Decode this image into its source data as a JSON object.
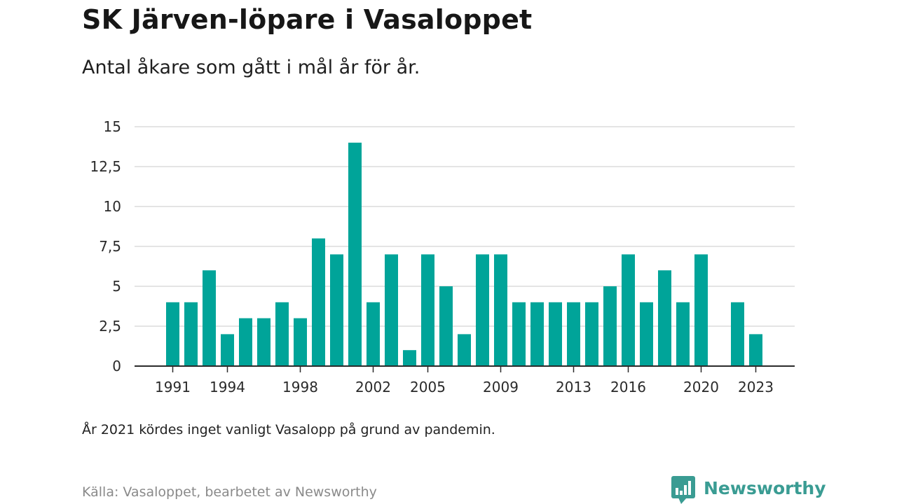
{
  "chart_data": {
    "type": "bar",
    "title": "SK Järven-löpare i Vasaloppet",
    "subtitle": "Antal åkare som gått i mål år för år.",
    "categories": [
      1991,
      1992,
      1993,
      1994,
      1995,
      1996,
      1997,
      1998,
      1999,
      2000,
      2001,
      2002,
      2003,
      2004,
      2005,
      2006,
      2007,
      2008,
      2009,
      2010,
      2011,
      2012,
      2013,
      2014,
      2015,
      2016,
      2017,
      2018,
      2019,
      2020,
      2021,
      2022,
      2023
    ],
    "values": [
      4,
      4,
      6,
      2,
      3,
      3,
      4,
      3,
      8,
      7,
      14,
      4,
      7,
      1,
      7,
      5,
      2,
      7,
      7,
      4,
      4,
      4,
      4,
      4,
      5,
      7,
      4,
      6,
      4,
      7,
      null,
      4,
      2
    ],
    "x_tick_labels": [
      "1991",
      "1994",
      "1998",
      "2002",
      "2005",
      "2009",
      "2013",
      "2016",
      "2020",
      "2023"
    ],
    "y_tick_labels": [
      "0",
      "2,5",
      "5",
      "7,5",
      "10",
      "12,5",
      "15"
    ],
    "y_ticks": [
      0,
      2.5,
      5,
      7.5,
      10,
      12.5,
      15
    ],
    "ylim": [
      0,
      15
    ],
    "grid": true,
    "bar_color": "#00a499",
    "note": "År 2021 kördes inget vanligt Vasalopp på grund av pandemin.",
    "source": "Källa: Vasaloppet, bearbetet av Newsworthy"
  },
  "brand": {
    "name": "Newsworthy",
    "color": "#3a9c93"
  }
}
